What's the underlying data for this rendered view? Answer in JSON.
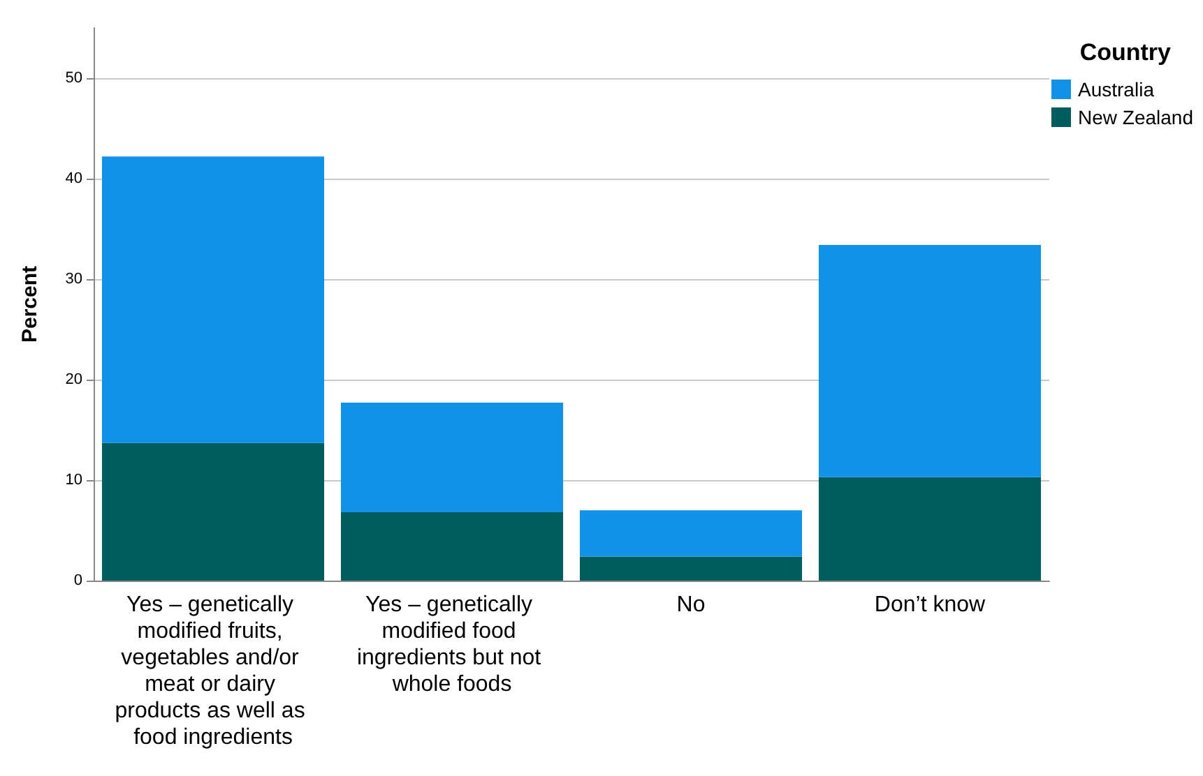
{
  "chart_data": {
    "type": "bar",
    "stacked": true,
    "ylabel": "Percent",
    "legend_title": "Country",
    "legend": "top right",
    "grid": "y",
    "categories": [
      "Yes – genetically modified fruits, vegetables and/or meat or dairy products as well as food ingredients",
      "Yes – genetically modified food ingredients but not whole foods",
      "No",
      "Don’t know"
    ],
    "series": [
      {
        "name": "New Zealand",
        "color": "#005d5d",
        "values": [
          13.7,
          6.8,
          2.4,
          10.3
        ]
      },
      {
        "name": "Australia",
        "color": "#1192e8",
        "values": [
          28.5,
          10.9,
          4.6,
          23.1
        ]
      }
    ],
    "ylim": [
      0,
      55
    ],
    "yticks": [
      0,
      10,
      20,
      30,
      40,
      50
    ]
  }
}
